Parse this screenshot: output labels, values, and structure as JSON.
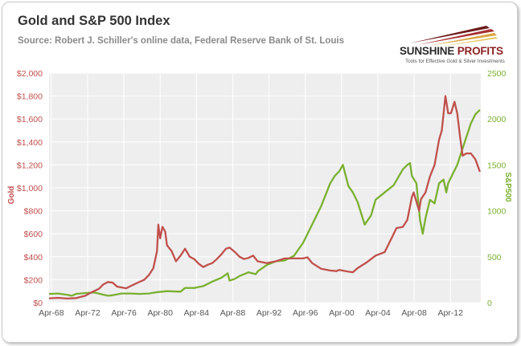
{
  "header": {
    "title": "Gold and S&P 500 Index",
    "subtitle": "Source: Robert J. Schiller's online data, Federal Reserve Bank of St. Louis"
  },
  "logo": {
    "name_part1": "SUNSHINE",
    "name_part2": " PROFITS",
    "tagline": "Tools for Effective Gold & Silver Investments"
  },
  "chart_data": {
    "type": "line",
    "ylabel_left": "Gold",
    "ylabel_right": "S&P500",
    "ylim_left": [
      0,
      2000
    ],
    "ylim_right": [
      0,
      2500
    ],
    "yticks_left": [
      "$0",
      "$200",
      "$400",
      "$600",
      "$800",
      "$1,000",
      "$1,200",
      "$1,400",
      "$1,600",
      "$1,800",
      "$2,000"
    ],
    "yticks_right": [
      "0",
      "500",
      "1000",
      "1500",
      "2000",
      "2500"
    ],
    "xticks": [
      "Apr-68",
      "Apr-72",
      "Apr-76",
      "Apr-80",
      "Apr-84",
      "Apr-88",
      "Apr-92",
      "Apr-96",
      "Apr-00",
      "Apr-04",
      "Apr-08",
      "Apr-12"
    ],
    "xlim": [
      1968.0,
      2015.6
    ],
    "grid": true,
    "colors": {
      "gold": "#c0504d",
      "sp500": "#7ab030"
    },
    "series": [
      {
        "name": "Gold",
        "axis": "left",
        "x": [
          1968.0,
          1969.0,
          1970.0,
          1971.0,
          1972.0,
          1972.8,
          1973.5,
          1974.0,
          1974.5,
          1975.0,
          1975.5,
          1976.5,
          1977.0,
          1977.8,
          1978.5,
          1979.0,
          1979.5,
          1979.9,
          1980.05,
          1980.25,
          1980.5,
          1980.8,
          1981.0,
          1981.5,
          1982.0,
          1982.5,
          1983.0,
          1983.5,
          1984.0,
          1984.5,
          1985.0,
          1985.5,
          1986.0,
          1986.5,
          1987.0,
          1987.5,
          1987.9,
          1988.5,
          1989.0,
          1989.5,
          1990.0,
          1990.5,
          1991.0,
          1992.0,
          1993.0,
          1994.0,
          1995.0,
          1996.0,
          1996.5,
          1997.0,
          1998.0,
          1999.0,
          1999.7,
          2000.0,
          2001.0,
          2001.5,
          2002.0,
          2003.0,
          2004.0,
          2005.0,
          2006.0,
          2006.3,
          2007.0,
          2007.5,
          2008.0,
          2008.2,
          2008.8,
          2009.0,
          2009.5,
          2010.0,
          2010.5,
          2011.0,
          2011.3,
          2011.7,
          2012.0,
          2012.3,
          2012.7,
          2013.0,
          2013.3,
          2013.6,
          2014.0,
          2014.5,
          2015.0,
          2015.5
        ],
        "y": [
          38,
          42,
          36,
          40,
          60,
          95,
          120,
          160,
          180,
          175,
          140,
          125,
          145,
          175,
          200,
          240,
          300,
          450,
          680,
          560,
          660,
          620,
          500,
          450,
          360,
          410,
          470,
          400,
          380,
          340,
          310,
          330,
          345,
          380,
          420,
          470,
          480,
          440,
          400,
          380,
          390,
          410,
          360,
          345,
          360,
          385,
          385,
          385,
          395,
          345,
          295,
          280,
          275,
          285,
          270,
          265,
          300,
          350,
          410,
          440,
          600,
          650,
          660,
          720,
          920,
          960,
          800,
          900,
          960,
          1100,
          1200,
          1420,
          1500,
          1800,
          1650,
          1650,
          1750,
          1650,
          1450,
          1280,
          1300,
          1300,
          1250,
          1140
        ]
      },
      {
        "name": "S&P500",
        "axis": "right",
        "x": [
          1968.0,
          1969.0,
          1970.0,
          1970.5,
          1971.0,
          1972.0,
          1973.0,
          1974.5,
          1975.0,
          1976.0,
          1977.0,
          1978.0,
          1979.0,
          1980.0,
          1981.0,
          1982.5,
          1983.0,
          1984.0,
          1985.0,
          1986.0,
          1987.0,
          1987.7,
          1987.9,
          1988.5,
          1989.0,
          1990.0,
          1990.8,
          1991.0,
          1992.0,
          1993.0,
          1994.0,
          1995.0,
          1996.0,
          1997.0,
          1998.0,
          1999.0,
          1999.5,
          2000.0,
          2000.4,
          2001.0,
          2001.5,
          2002.0,
          2002.8,
          2003.5,
          2004.0,
          2005.0,
          2006.0,
          2007.0,
          2007.5,
          2007.8,
          2008.0,
          2008.5,
          2008.9,
          2009.2,
          2009.5,
          2010.0,
          2010.5,
          2011.0,
          2011.5,
          2011.8,
          2012.0,
          2013.0,
          2014.0,
          2014.5,
          2015.0,
          2015.5
        ],
        "y": [
          95,
          100,
          85,
          75,
          95,
          105,
          110,
          75,
          80,
          100,
          100,
          95,
          100,
          115,
          125,
          120,
          160,
          160,
          180,
          230,
          270,
          320,
          240,
          260,
          290,
          330,
          310,
          340,
          410,
          450,
          460,
          510,
          650,
          850,
          1050,
          1300,
          1380,
          1430,
          1500,
          1270,
          1200,
          1100,
          850,
          950,
          1120,
          1200,
          1280,
          1450,
          1500,
          1520,
          1380,
          1300,
          900,
          750,
          920,
          1120,
          1080,
          1300,
          1340,
          1200,
          1300,
          1500,
          1800,
          1950,
          2050,
          2100
        ]
      }
    ]
  }
}
